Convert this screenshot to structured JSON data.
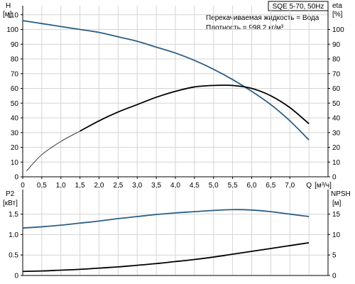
{
  "title": "SQE 5-70, 50Hz",
  "info_lines": [
    "Перекачиваемая жидкость = Вода",
    "Плотность = 998.2 кг/м³"
  ],
  "chart_data": [
    {
      "type": "line",
      "id": "upper",
      "x_label": "Q [м³/ч]",
      "x_tick_labels": [
        "0",
        "0,5",
        "1,0",
        "1,5",
        "2,0",
        "2,5",
        "3,0",
        "3,5",
        "4,0",
        "4,5",
        "5,0",
        "5,5",
        "6,0",
        "6,5",
        "7,0",
        "Q",
        "[м³/ч]"
      ],
      "xlim": [
        0,
        8.0
      ],
      "y_left": {
        "label_top": "H",
        "label_unit": "[м]",
        "ylim": [
          0,
          120
        ],
        "ticks": [
          0,
          10,
          20,
          30,
          40,
          50,
          60,
          70,
          80,
          90,
          100,
          110
        ]
      },
      "y_right": {
        "label_top": "eta",
        "label_unit": "[%]",
        "ylim": [
          0,
          120
        ],
        "ticks": [
          0,
          10,
          20,
          30,
          40,
          50,
          60,
          70,
          80,
          90,
          100
        ]
      },
      "grid": true,
      "series": [
        {
          "axis": "left",
          "color": "#2b5f86",
          "x": [
            0,
            0.5,
            1.0,
            1.5,
            2.0,
            2.5,
            3.0,
            3.5,
            4.0,
            4.5,
            5.0,
            5.5,
            6.0,
            6.5,
            7.0,
            7.5
          ],
          "y": [
            106,
            104,
            102,
            100,
            98,
            95,
            92,
            88,
            84,
            79,
            73,
            66,
            58,
            49,
            38,
            25
          ]
        },
        {
          "axis": "right",
          "color": "#000000",
          "thin_until": 1.5,
          "x": [
            0.1,
            0.5,
            1.0,
            1.5,
            2.0,
            2.5,
            3.0,
            3.5,
            4.0,
            4.5,
            5.0,
            5.5,
            6.0,
            6.5,
            7.0,
            7.5
          ],
          "y": [
            4,
            15,
            24,
            31,
            38,
            44,
            49,
            54,
            58,
            61,
            62,
            62,
            60,
            55,
            47,
            36
          ]
        }
      ]
    },
    {
      "type": "line",
      "id": "lower",
      "xlim": [
        0,
        8.0
      ],
      "y_left": {
        "label_top": "P2",
        "label_unit": "[кВт]",
        "ylim": [
          0,
          2.1
        ],
        "ticks": [
          0,
          0.5,
          1.0,
          1.5
        ],
        "tick_labels": [
          "0",
          "0.5",
          "1.0",
          "1.5"
        ]
      },
      "y_right": {
        "label_top": "NPSH",
        "label_unit": "[м]",
        "ylim": [
          0,
          21
        ],
        "ticks": [
          0,
          5,
          10,
          15
        ],
        "tick_labels": [
          "0",
          "5",
          "10",
          "15"
        ]
      },
      "grid": true,
      "series": [
        {
          "axis": "left",
          "color": "#2b5f86",
          "x": [
            0,
            0.5,
            1.0,
            1.5,
            2.0,
            2.5,
            3.0,
            3.5,
            4.0,
            4.5,
            5.0,
            5.5,
            6.0,
            6.5,
            7.0,
            7.5
          ],
          "y": [
            1.16,
            1.19,
            1.23,
            1.28,
            1.33,
            1.39,
            1.44,
            1.49,
            1.53,
            1.56,
            1.59,
            1.61,
            1.6,
            1.56,
            1.5,
            1.44
          ]
        },
        {
          "axis": "right",
          "color": "#000000",
          "x": [
            0,
            0.5,
            1.0,
            1.5,
            2.0,
            2.5,
            3.0,
            3.5,
            4.0,
            4.5,
            5.0,
            5.5,
            6.0,
            6.5,
            7.0,
            7.5
          ],
          "y": [
            1.0,
            1.1,
            1.3,
            1.5,
            1.8,
            2.1,
            2.5,
            2.9,
            3.4,
            3.9,
            4.5,
            5.2,
            5.9,
            6.6,
            7.3,
            8.0
          ]
        }
      ]
    }
  ]
}
